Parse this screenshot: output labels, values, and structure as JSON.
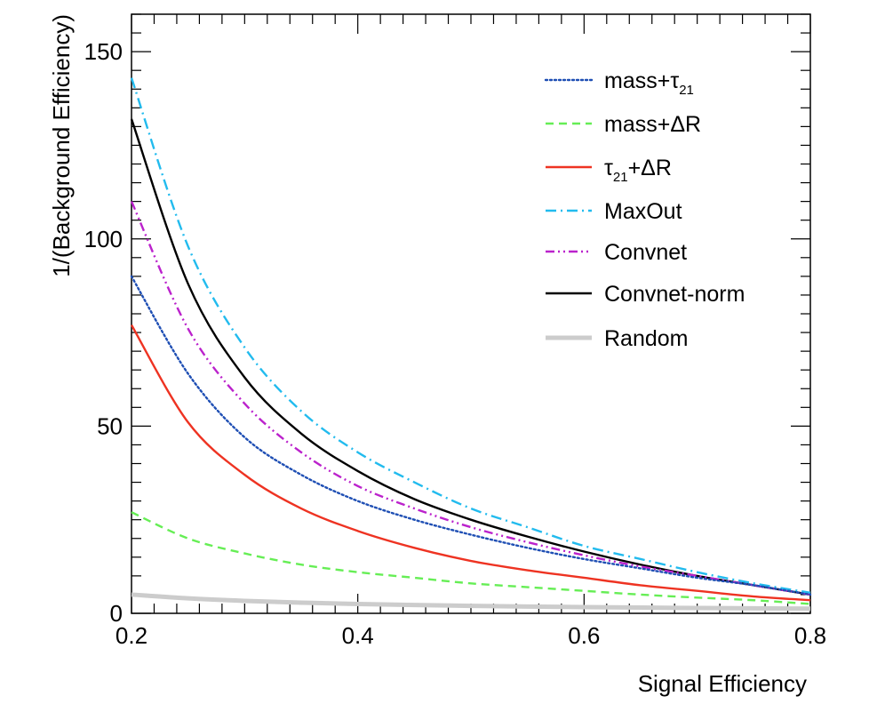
{
  "chart_data": {
    "type": "line",
    "xlabel": "Signal Efficiency",
    "ylabel": "1/(Background Efficiency)",
    "xlim": [
      0.2,
      0.8
    ],
    "ylim": [
      0,
      160
    ],
    "xticks": [
      {
        "value": 0.2,
        "label": "0.2"
      },
      {
        "value": 0.4,
        "label": "0.4"
      },
      {
        "value": 0.6,
        "label": "0.6"
      },
      {
        "value": 0.8,
        "label": "0.8"
      }
    ],
    "yticks": [
      {
        "value": 0,
        "label": "0"
      },
      {
        "value": 50,
        "label": "50"
      },
      {
        "value": 100,
        "label": "100"
      },
      {
        "value": 150,
        "label": "150"
      }
    ],
    "grid": false,
    "legend_position": "top-right",
    "series": [
      {
        "name": "mass+τ21",
        "label_main": "mass+τ",
        "label_sub": "21",
        "label_tail": "",
        "color": "#1f4fb4",
        "dash": "dotted",
        "x": [
          0.2,
          0.25,
          0.3,
          0.35,
          0.4,
          0.45,
          0.5,
          0.55,
          0.6,
          0.65,
          0.7,
          0.75,
          0.8
        ],
        "y": [
          90,
          64,
          47,
          37,
          30,
          25,
          21,
          17.5,
          14.5,
          12,
          9.5,
          7.5,
          5
        ]
      },
      {
        "name": "mass+ΔR",
        "label_main": "mass+ΔR",
        "label_sub": "",
        "label_tail": "",
        "color": "#66ee55",
        "dash": "dashed",
        "x": [
          0.2,
          0.25,
          0.3,
          0.35,
          0.4,
          0.45,
          0.5,
          0.55,
          0.6,
          0.65,
          0.7,
          0.75,
          0.8
        ],
        "y": [
          27,
          20,
          16,
          13,
          11,
          9.5,
          8,
          7,
          6,
          5,
          4.2,
          3.5,
          2.5
        ]
      },
      {
        "name": "τ21+ΔR",
        "label_main": "τ",
        "label_sub": "21",
        "label_tail": "+ΔR",
        "color": "#ee3322",
        "dash": "solid",
        "x": [
          0.2,
          0.25,
          0.3,
          0.35,
          0.4,
          0.45,
          0.5,
          0.55,
          0.6,
          0.65,
          0.7,
          0.75,
          0.8
        ],
        "y": [
          77,
          51,
          37,
          28,
          22,
          17.5,
          14,
          11.5,
          9.5,
          7.5,
          6,
          4.5,
          3.5
        ]
      },
      {
        "name": "MaxOut",
        "label_main": "MaxOut",
        "label_sub": "",
        "label_tail": "",
        "color": "#22bbee",
        "dash": "dashdot",
        "x": [
          0.2,
          0.25,
          0.3,
          0.35,
          0.4,
          0.45,
          0.5,
          0.55,
          0.6,
          0.65,
          0.7,
          0.75,
          0.8
        ],
        "y": [
          143,
          98,
          71,
          54,
          43,
          35,
          28,
          23,
          18,
          14.5,
          11,
          8,
          5.5
        ]
      },
      {
        "name": "Convnet",
        "label_main": "Convnet",
        "label_sub": "",
        "label_tail": "",
        "color": "#bb22cc",
        "dash": "dashdotdot",
        "x": [
          0.2,
          0.25,
          0.3,
          0.35,
          0.4,
          0.45,
          0.5,
          0.55,
          0.6,
          0.65,
          0.7,
          0.75,
          0.8
        ],
        "y": [
          110,
          76,
          56,
          43,
          34,
          28,
          23,
          19,
          15.5,
          12.5,
          10,
          7.5,
          5
        ]
      },
      {
        "name": "Convnet-norm",
        "label_main": "Convnet-norm",
        "label_sub": "",
        "label_tail": "",
        "color": "#000000",
        "dash": "solid",
        "x": [
          0.2,
          0.25,
          0.3,
          0.35,
          0.4,
          0.45,
          0.5,
          0.55,
          0.6,
          0.65,
          0.7,
          0.75,
          0.8
        ],
        "y": [
          132,
          88,
          63,
          48,
          38,
          30.5,
          25,
          20.5,
          16.5,
          13,
          10,
          7.5,
          5
        ]
      },
      {
        "name": "Random",
        "label_main": "Random",
        "label_sub": "",
        "label_tail": "",
        "color": "#cccccc",
        "dash": "solid",
        "thick": true,
        "x": [
          0.2,
          0.25,
          0.3,
          0.35,
          0.4,
          0.45,
          0.5,
          0.55,
          0.6,
          0.65,
          0.7,
          0.75,
          0.8
        ],
        "y": [
          5,
          4,
          3.33,
          2.86,
          2.5,
          2.22,
          2,
          1.82,
          1.67,
          1.54,
          1.43,
          1.33,
          1.25
        ]
      }
    ]
  }
}
